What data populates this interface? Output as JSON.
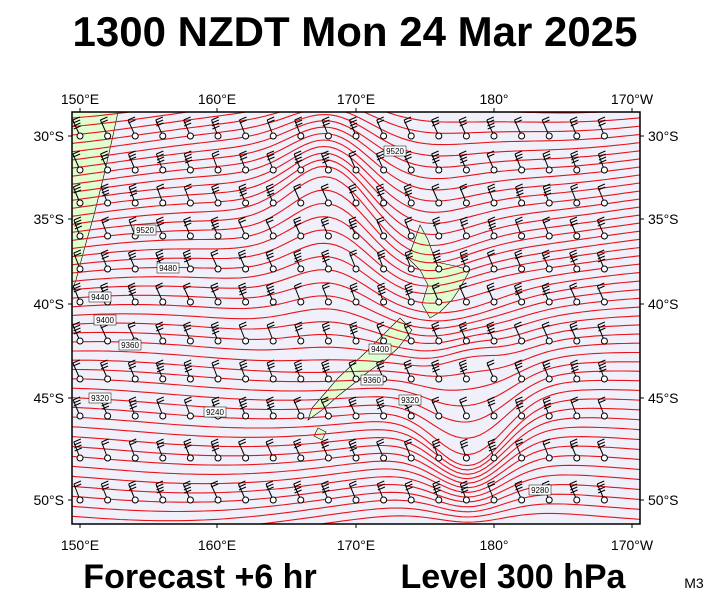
{
  "header": {
    "title": "1300 NZDT Mon 24 Mar 2025"
  },
  "map": {
    "lon_ticks": [
      "150°E",
      "160°E",
      "170°E",
      "180°",
      "170°W"
    ],
    "lat_ticks": [
      "30°S",
      "35°S",
      "40°S",
      "45°S",
      "50°S"
    ],
    "contour_labels": [
      "9520",
      "9520",
      "9480",
      "9440",
      "9400",
      "9360",
      "9320",
      "9240",
      "9400",
      "9360",
      "9320",
      "9280"
    ]
  },
  "footer": {
    "forecast": "Forecast +6 hr",
    "level": "Level 300 hPa",
    "code": "M3"
  }
}
